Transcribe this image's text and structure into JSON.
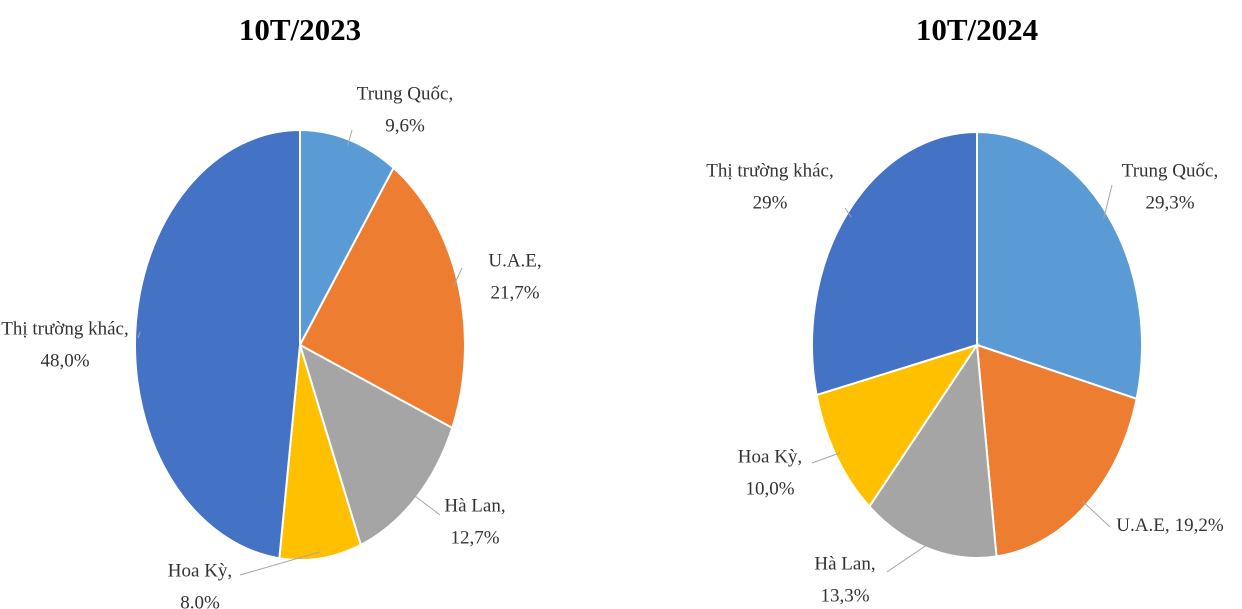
{
  "chart_data": [
    {
      "type": "pie",
      "title": "10T/2023",
      "categories": [
        "Trung Quốc,",
        "U.A.E,",
        "Hà Lan,",
        "Hoa Kỳ,",
        "Thị trường khác,"
      ],
      "values": [
        9.6,
        21.7,
        12.7,
        8.0,
        48.0
      ],
      "value_labels": [
        "9,6%",
        "21,7%",
        "12,7%",
        "8.0%",
        "48,0%"
      ],
      "colors": [
        "#5b9bd5",
        "#ed7d31",
        "#a5a5a5",
        "#ffc000",
        "#4472c4"
      ]
    },
    {
      "type": "pie",
      "title": "10T/2024",
      "categories": [
        "Trung Quốc,",
        "U.A.E,",
        "Hà Lan,",
        "Hoa Kỳ,",
        "Thị trường khác,"
      ],
      "values": [
        29.3,
        19.2,
        13.3,
        10.0,
        29
      ],
      "value_labels": [
        "29,3%",
        "19,2%",
        "13,3%",
        "10,0%",
        "29%"
      ],
      "colors": [
        "#5b9bd5",
        "#ed7d31",
        "#a5a5a5",
        "#ffc000",
        "#4472c4"
      ]
    }
  ]
}
